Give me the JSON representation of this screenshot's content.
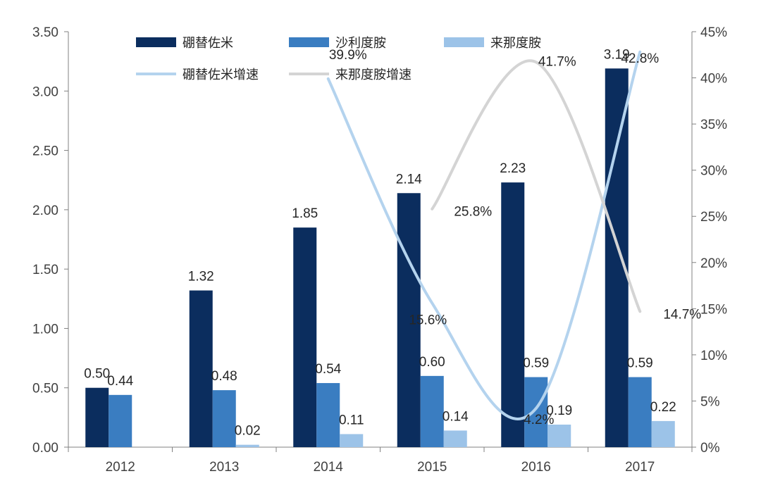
{
  "chart_data": {
    "type": "bar",
    "categories": [
      "2012",
      "2013",
      "2014",
      "2015",
      "2016",
      "2017"
    ],
    "series": [
      {
        "name": "硼替佐米",
        "kind": "bar",
        "axis": "left",
        "color": "#0b2d5e",
        "values": [
          0.5,
          1.32,
          1.85,
          2.14,
          2.23,
          3.19
        ],
        "labels": [
          "0.50",
          "1.32",
          "1.85",
          "2.14",
          "2.23",
          "3.19"
        ]
      },
      {
        "name": "沙利度胺",
        "kind": "bar",
        "axis": "left",
        "color": "#3a7dc1",
        "values": [
          0.44,
          0.48,
          0.54,
          0.6,
          0.59,
          0.59
        ],
        "labels": [
          "0.44",
          "0.48",
          "0.54",
          "0.60",
          "0.59",
          "0.59"
        ]
      },
      {
        "name": "来那度胺",
        "kind": "bar",
        "axis": "left",
        "color": "#9cc3e8",
        "values": [
          null,
          0.02,
          0.11,
          0.14,
          0.19,
          0.22
        ],
        "labels": [
          null,
          "0.02",
          "0.11",
          "0.14",
          "0.19",
          "0.22"
        ]
      },
      {
        "name": "硼替佐米增速",
        "kind": "line",
        "axis": "right",
        "color": "#b4d3ee",
        "values": [
          null,
          null,
          39.9,
          15.6,
          4.2,
          42.8
        ],
        "labels": [
          null,
          null,
          "39.9%",
          "15.6%",
          "4.2%",
          "42.8%"
        ]
      },
      {
        "name": "来那度胺增速",
        "kind": "line",
        "axis": "right",
        "color": "#d4d4d4",
        "values": [
          null,
          null,
          null,
          25.8,
          41.7,
          14.7
        ],
        "labels": [
          null,
          null,
          null,
          "25.8%",
          "41.7%",
          "14.7%"
        ]
      }
    ],
    "left_axis": {
      "ylim": [
        0,
        3.5
      ],
      "ticks": [
        "0.00",
        "0.50",
        "1.00",
        "1.50",
        "2.00",
        "2.50",
        "3.00",
        "3.50"
      ]
    },
    "right_axis": {
      "ylim": [
        0,
        45
      ],
      "ticks": [
        "0%",
        "5%",
        "10%",
        "15%",
        "20%",
        "25%",
        "30%",
        "35%",
        "40%",
        "45%"
      ]
    },
    "title": "",
    "xlabel": "",
    "ylabel": "",
    "grid": false,
    "legend_position": "top"
  }
}
